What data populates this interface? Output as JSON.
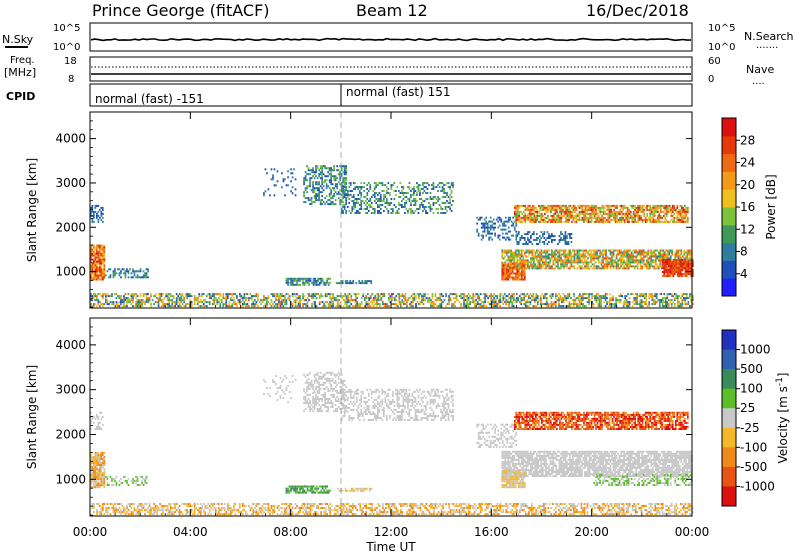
{
  "header": {
    "station": "Prince George (fitACF)",
    "beam": "Beam 12",
    "date": "16/Dec/2018"
  },
  "strip_nsky": {
    "left_label": "N.Sky",
    "left_ticks": [
      "10^5",
      "10^0"
    ],
    "right_label": "N.Search",
    "right_ticks": [
      "10^5",
      "10^0"
    ],
    "right_legend": "......."
  },
  "strip_freq": {
    "left_label_1": "Freq.",
    "left_label_2": "[MHz]",
    "left_ticks": [
      "18",
      "8"
    ],
    "right_label": "Nave",
    "right_ticks": [
      "60",
      "0"
    ],
    "right_legend": "...."
  },
  "cpid": {
    "label": "CPID",
    "segments": [
      {
        "text": "normal (fast) -151",
        "from_hour": 0,
        "to_hour": 10
      },
      {
        "text": "normal (fast) 151",
        "from_hour": 10,
        "to_hour": 24
      }
    ]
  },
  "x_axis": {
    "title": "Time UT",
    "ticks": [
      "00:00",
      "04:00",
      "08:00",
      "12:00",
      "16:00",
      "20:00",
      "00:00"
    ],
    "range_hours": [
      0,
      24
    ]
  },
  "colors": {
    "power": [
      "#2020ff",
      "#1f4fb8",
      "#2e7d9e",
      "#3f9a5a",
      "#7cc23a",
      "#f0c020",
      "#f59a18",
      "#ee6a12",
      "#e53a0a",
      "#dd1010"
    ],
    "velocity": [
      "#2030c0",
      "#3060b0",
      "#3a8a5a",
      "#5cbf2a",
      "#c8c8c8",
      "#f5b82a",
      "#f08a18",
      "#e85512",
      "#dd1010"
    ]
  },
  "chart_data": [
    {
      "type": "heatmap",
      "title": "",
      "ylabel": "Slant Range [km]",
      "xlabel": "",
      "x_range_hours": [
        0,
        24
      ],
      "ylim": [
        180,
        4600
      ],
      "yticks": [
        "1000",
        "2000",
        "3000",
        "4000"
      ],
      "colorbar": {
        "label": "Power [dB]",
        "ticks": [
          "4",
          "8",
          "12",
          "16",
          "20",
          "24",
          "28"
        ],
        "range": [
          0,
          32
        ]
      },
      "regions": [
        {
          "t0": 0.0,
          "t1": 24.0,
          "r0": 200,
          "r1": 500,
          "v0": 4,
          "v1": 24,
          "density": 0.55
        },
        {
          "t0": 0.0,
          "t1": 0.6,
          "r0": 800,
          "r1": 1600,
          "v0": 16,
          "v1": 30,
          "density": 0.9
        },
        {
          "t0": 0.6,
          "t1": 2.3,
          "r0": 850,
          "r1": 1050,
          "v0": 4,
          "v1": 12,
          "density": 0.5
        },
        {
          "t0": 0.0,
          "t1": 0.5,
          "r0": 2100,
          "r1": 2500,
          "v0": 4,
          "v1": 10,
          "density": 0.5
        },
        {
          "t0": 6.9,
          "t1": 8.2,
          "r0": 2700,
          "r1": 3300,
          "v0": 4,
          "v1": 8,
          "density": 0.12
        },
        {
          "t0": 7.8,
          "t1": 9.6,
          "r0": 680,
          "r1": 820,
          "v0": 4,
          "v1": 14,
          "density": 0.7
        },
        {
          "t0": 8.5,
          "t1": 10.2,
          "r0": 2500,
          "r1": 3400,
          "v0": 4,
          "v1": 14,
          "density": 0.45
        },
        {
          "t0": 10.0,
          "t1": 14.5,
          "r0": 2300,
          "r1": 3000,
          "v0": 4,
          "v1": 16,
          "density": 0.4
        },
        {
          "t0": 9.8,
          "t1": 11.2,
          "r0": 720,
          "r1": 800,
          "v0": 4,
          "v1": 12,
          "density": 0.6
        },
        {
          "t0": 15.4,
          "t1": 17.0,
          "r0": 1700,
          "r1": 2200,
          "v0": 4,
          "v1": 10,
          "density": 0.35
        },
        {
          "t0": 17.0,
          "t1": 19.2,
          "r0": 1600,
          "r1": 1900,
          "v0": 4,
          "v1": 10,
          "density": 0.45
        },
        {
          "t0": 16.9,
          "t1": 23.8,
          "r0": 2100,
          "r1": 2500,
          "v0": 12,
          "v1": 30,
          "density": 0.75
        },
        {
          "t0": 16.4,
          "t1": 24.0,
          "r0": 1050,
          "r1": 1500,
          "v0": 8,
          "v1": 26,
          "density": 0.75
        },
        {
          "t0": 16.4,
          "t1": 17.3,
          "r0": 800,
          "r1": 1200,
          "v0": 20,
          "v1": 30,
          "density": 0.85
        },
        {
          "t0": 22.8,
          "t1": 24.0,
          "r0": 880,
          "r1": 1250,
          "v0": 24,
          "v1": 30,
          "density": 0.9
        }
      ]
    },
    {
      "type": "heatmap",
      "title": "",
      "ylabel": "Slant Range [km]",
      "xlabel": "Time UT",
      "x_range_hours": [
        0,
        24
      ],
      "ylim": [
        180,
        4600
      ],
      "yticks": [
        "1000",
        "2000",
        "3000",
        "4000"
      ],
      "colorbar": {
        "label": "Velocity [m s^-1]",
        "ticks": [
          "1000",
          "500",
          "100",
          "25",
          "-25",
          "-100",
          "-500",
          "-1000"
        ]
      },
      "regions": [
        {
          "t0": 0.0,
          "t1": 24.0,
          "r0": 200,
          "r1": 450,
          "c": [
            4,
            5,
            6
          ],
          "density": 0.5
        },
        {
          "t0": 0.0,
          "t1": 0.6,
          "r0": 800,
          "r1": 1600,
          "c": [
            5,
            6,
            4
          ],
          "density": 0.85
        },
        {
          "t0": 0.6,
          "t1": 2.3,
          "r0": 850,
          "r1": 1050,
          "c": [
            4,
            3
          ],
          "density": 0.45
        },
        {
          "t0": 0.0,
          "t1": 0.5,
          "r0": 2100,
          "r1": 2500,
          "c": [
            4
          ],
          "density": 0.4
        },
        {
          "t0": 6.9,
          "t1": 8.2,
          "r0": 2700,
          "r1": 3300,
          "c": [
            4
          ],
          "density": 0.12
        },
        {
          "t0": 7.8,
          "t1": 9.6,
          "r0": 680,
          "r1": 820,
          "c": [
            3,
            2
          ],
          "density": 0.7
        },
        {
          "t0": 8.5,
          "t1": 10.2,
          "r0": 2500,
          "r1": 3400,
          "c": [
            4
          ],
          "density": 0.45
        },
        {
          "t0": 10.0,
          "t1": 14.5,
          "r0": 2300,
          "r1": 3000,
          "c": [
            4
          ],
          "density": 0.4
        },
        {
          "t0": 9.8,
          "t1": 11.2,
          "r0": 720,
          "r1": 800,
          "c": [
            5,
            4
          ],
          "density": 0.6
        },
        {
          "t0": 15.4,
          "t1": 17.0,
          "r0": 1700,
          "r1": 2200,
          "c": [
            4
          ],
          "density": 0.35
        },
        {
          "t0": 16.9,
          "t1": 23.8,
          "r0": 2100,
          "r1": 2500,
          "c": [
            6,
            7,
            8
          ],
          "density": 0.75
        },
        {
          "t0": 16.4,
          "t1": 24.0,
          "r0": 1050,
          "r1": 1600,
          "c": [
            4
          ],
          "density": 0.8
        },
        {
          "t0": 16.4,
          "t1": 17.3,
          "r0": 800,
          "r1": 1200,
          "c": [
            5,
            4
          ],
          "density": 0.85
        },
        {
          "t0": 20.0,
          "t1": 24.0,
          "r0": 850,
          "r1": 1100,
          "c": [
            4,
            3
          ],
          "density": 0.5
        }
      ]
    }
  ]
}
